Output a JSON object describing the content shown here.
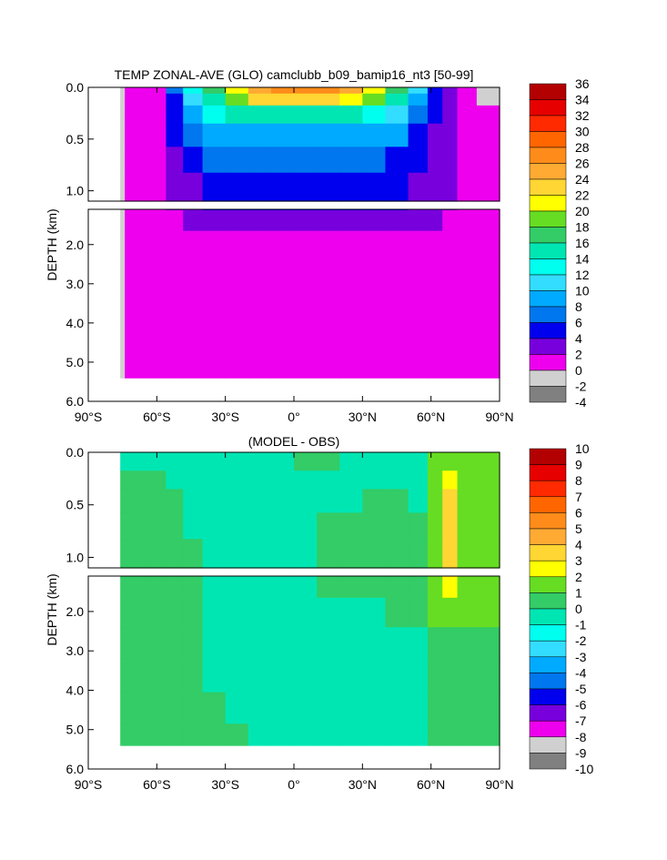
{
  "chart_data": [
    {
      "type": "heatmap",
      "panel": "top",
      "title": "TEMP ZONAL-AVE (GLO) camclubb_b09_bamip16_nt3 [50-99]",
      "ylabel": "DEPTH (km)",
      "x_ticks": [
        "90°S",
        "60°S",
        "30°S",
        "0°",
        "30°N",
        "60°N",
        "90°N"
      ],
      "x_tick_values": [
        -90,
        -60,
        -30,
        0,
        30,
        60,
        90
      ],
      "xlim": [
        -90,
        90
      ],
      "upper_y_ticks": [
        "0.0",
        "0.5",
        "1.0"
      ],
      "upper_y_values": [
        0,
        0.5,
        1.0
      ],
      "upper_ylim": [
        0,
        1.1
      ],
      "lower_y_ticks": [
        "2.0",
        "3.0",
        "4.0",
        "5.0",
        "6.0"
      ],
      "lower_y_values": [
        2,
        3,
        4,
        5,
        6
      ],
      "lower_ylim": [
        1.1,
        6.0
      ],
      "colorbar_levels": [
        "36",
        "34",
        "32",
        "30",
        "28",
        "26",
        "24",
        "22",
        "20",
        "18",
        "16",
        "14",
        "12",
        "10",
        "8",
        "6",
        "4",
        "2",
        "0",
        "-2",
        "-4"
      ],
      "colorbar_colors": [
        "#b30000",
        "#e60000",
        "#ff2a00",
        "#ff6600",
        "#ff8c1a",
        "#ffaa33",
        "#ffd633",
        "#ffff00",
        "#66dd22",
        "#33cc66",
        "#00e6b3",
        "#00ffee",
        "#33ddff",
        "#00aaff",
        "#0077ee",
        "#0000ee",
        "#7700dd",
        "#ee00ee",
        "#d0d0d0",
        "#808080"
      ],
      "field": {
        "x": [
          -78,
          -70,
          -60,
          -52,
          -45,
          -35,
          -25,
          -15,
          -5,
          5,
          15,
          25,
          35,
          45,
          55,
          62,
          68,
          75,
          85
        ],
        "depth": [
          0.02,
          0.1,
          0.25,
          0.45,
          0.7,
          0.95,
          1.3,
          2.0,
          2.8,
          3.6,
          4.5,
          5.2
        ],
        "values": [
          [
            0,
            1,
            2,
            8,
            14,
            18,
            22,
            25,
            27,
            28,
            27,
            25,
            22,
            18,
            12,
            6,
            4,
            1,
            0
          ],
          [
            0,
            1,
            2,
            6,
            12,
            16,
            20,
            23,
            24,
            24,
            23,
            22,
            19,
            15,
            10,
            5,
            4,
            1,
            0
          ],
          [
            0,
            1,
            2,
            5,
            10,
            13,
            15,
            16,
            16,
            15,
            15,
            15,
            14,
            12,
            8,
            5,
            3,
            1,
            1
          ],
          [
            0,
            1,
            2,
            5,
            7,
            9,
            10,
            10,
            9,
            9,
            9,
            10,
            10,
            9,
            6,
            4,
            3,
            1,
            1
          ],
          [
            0,
            1,
            2,
            4,
            6,
            7,
            7,
            7,
            7,
            7,
            7,
            7,
            7,
            6,
            5,
            4,
            3,
            1,
            1
          ],
          [
            0,
            1,
            2,
            3,
            4,
            5,
            5,
            5,
            5,
            5,
            5,
            5,
            5,
            5,
            4,
            4,
            3,
            1,
            1
          ],
          [
            0,
            1,
            1,
            2,
            3,
            3,
            3,
            3,
            3,
            3,
            3,
            3,
            3,
            3,
            3,
            3,
            2,
            1,
            1
          ],
          [
            0,
            1,
            1,
            1,
            2,
            2,
            2,
            2,
            2,
            2,
            2,
            2,
            2,
            2,
            2,
            2,
            1,
            1,
            1
          ],
          [
            0,
            1,
            1,
            1,
            1,
            1,
            1,
            1,
            1,
            1,
            1,
            1,
            1,
            1,
            1,
            1,
            1,
            1,
            1
          ],
          [
            0,
            1,
            1,
            1,
            1,
            1,
            1,
            1,
            1,
            1,
            1,
            1,
            1,
            1,
            1,
            1,
            1,
            1,
            1
          ],
          [
            0,
            1,
            1,
            1,
            1,
            1,
            1,
            1,
            1,
            1,
            1,
            1,
            1,
            1,
            1,
            1,
            1,
            1,
            1
          ],
          [
            0,
            1,
            1,
            1,
            1,
            1,
            1,
            1,
            1,
            1,
            1,
            1,
            1,
            1,
            1,
            1,
            1,
            1,
            1
          ]
        ]
      }
    },
    {
      "type": "heatmap",
      "panel": "bottom",
      "title": "(MODEL - OBS)",
      "ylabel": "DEPTH (km)",
      "x_ticks": [
        "90°S",
        "60°S",
        "30°S",
        "0°",
        "30°N",
        "60°N",
        "90°N"
      ],
      "x_tick_values": [
        -90,
        -60,
        -30,
        0,
        30,
        60,
        90
      ],
      "xlim": [
        -90,
        90
      ],
      "upper_y_ticks": [
        "0.0",
        "0.5",
        "1.0"
      ],
      "upper_y_values": [
        0,
        0.5,
        1.0
      ],
      "upper_ylim": [
        0,
        1.1
      ],
      "lower_y_ticks": [
        "2.0",
        "3.0",
        "4.0",
        "5.0",
        "6.0"
      ],
      "lower_y_values": [
        2,
        3,
        4,
        5,
        6
      ],
      "lower_ylim": [
        1.1,
        6.0
      ],
      "colorbar_levels": [
        "10",
        "9",
        "8",
        "7",
        "6",
        "5",
        "4",
        "3",
        "2",
        "1",
        "0",
        "-1",
        "-2",
        "-3",
        "-4",
        "-5",
        "-6",
        "-7",
        "-8",
        "-9",
        "-10"
      ],
      "colorbar_colors": [
        "#b30000",
        "#e60000",
        "#ff2a00",
        "#ff6600",
        "#ff8c1a",
        "#ffaa33",
        "#ffd633",
        "#ffff00",
        "#66dd22",
        "#33cc66",
        "#00e6b3",
        "#00ffee",
        "#33ddff",
        "#00aaff",
        "#0077ee",
        "#0000ee",
        "#7700dd",
        "#ee00ee",
        "#d0d0d0",
        "#808080"
      ],
      "field": {
        "x": [
          -78,
          -70,
          -60,
          -52,
          -45,
          -35,
          -25,
          -15,
          -5,
          5,
          15,
          25,
          35,
          45,
          55,
          62,
          68,
          75,
          85
        ],
        "depth": [
          0.02,
          0.1,
          0.25,
          0.45,
          0.7,
          0.95,
          1.3,
          2.0,
          2.8,
          3.6,
          4.5,
          5.2
        ],
        "values": [
          [
            -0.5,
            -0.5,
            -0.5,
            -0.5,
            -0.5,
            -0.5,
            -0.5,
            -0.5,
            -0.3,
            0.5,
            0.3,
            -0.5,
            -0.5,
            -0.5,
            -0.5,
            1.5,
            1.5,
            1.5,
            1.5
          ],
          [
            -0.5,
            -0.5,
            -0.5,
            -0.5,
            -0.5,
            -0.5,
            -0.5,
            -0.5,
            -0.3,
            0.5,
            0.3,
            -0.5,
            -0.5,
            -0.5,
            -0.5,
            1.5,
            1.5,
            1.5,
            1.5
          ],
          [
            0.5,
            0.5,
            0.5,
            -0.5,
            -0.5,
            -0.5,
            -0.5,
            -0.5,
            -0.5,
            -0.5,
            -0.5,
            -0.5,
            -0.5,
            -0.5,
            -0.5,
            1.5,
            2.5,
            1.5,
            1.5
          ],
          [
            0.5,
            0.5,
            0.5,
            0.5,
            -0.5,
            -0.5,
            -0.5,
            -0.5,
            -0.5,
            -0.5,
            -0.5,
            -0.5,
            0.5,
            0.5,
            -0.5,
            1.5,
            3.5,
            1.5,
            1.5
          ],
          [
            0.5,
            0.5,
            0.5,
            0.5,
            -0.5,
            -0.5,
            -0.5,
            -0.5,
            -0.5,
            -0.5,
            0.5,
            0.5,
            0.5,
            0.5,
            0.5,
            1.5,
            3.5,
            1.5,
            1.5
          ],
          [
            0.5,
            0.5,
            0.5,
            0.5,
            0.5,
            -0.5,
            -0.5,
            -0.5,
            -0.5,
            -0.5,
            0.5,
            0.5,
            0.5,
            0.5,
            0.5,
            1.5,
            3.5,
            1.5,
            1.5
          ],
          [
            0.5,
            0.5,
            0.5,
            0.5,
            0.5,
            -0.5,
            -0.5,
            -0.5,
            -0.5,
            -0.5,
            0.5,
            0.5,
            0.5,
            0.5,
            0.5,
            1.5,
            2.5,
            1.5,
            1.5
          ],
          [
            0.5,
            0.5,
            0.5,
            0.5,
            0.5,
            -0.5,
            -0.5,
            -0.5,
            -0.5,
            -0.5,
            -0.5,
            -0.5,
            -0.5,
            0.5,
            0.5,
            1.5,
            1.5,
            1.5,
            1.5
          ],
          [
            0.5,
            0.5,
            0.5,
            0.5,
            0.5,
            -0.5,
            -0.5,
            -0.5,
            -0.5,
            -0.5,
            -0.5,
            -0.5,
            -0.5,
            -0.5,
            -0.5,
            0.5,
            0.5,
            0.5,
            0.5
          ],
          [
            0.5,
            0.5,
            0.5,
            0.5,
            0.5,
            -0.5,
            -0.5,
            -0.5,
            -0.5,
            -0.5,
            -0.5,
            -0.5,
            -0.5,
            -0.5,
            -0.5,
            0.5,
            0.5,
            0.5,
            0.5
          ],
          [
            0.5,
            0.5,
            0.5,
            0.5,
            0.5,
            0.5,
            -0.5,
            -0.5,
            -0.5,
            -0.5,
            -0.5,
            -0.5,
            -0.5,
            -0.5,
            -0.5,
            0.5,
            0.5,
            0.5,
            0.5
          ],
          [
            0.5,
            0.5,
            0.5,
            0.5,
            0.5,
            0.5,
            0.5,
            -0.5,
            -0.5,
            -0.5,
            -0.5,
            -0.5,
            -0.5,
            -0.5,
            -0.5,
            0.5,
            0.5,
            0.5,
            0.5
          ]
        ]
      }
    }
  ]
}
